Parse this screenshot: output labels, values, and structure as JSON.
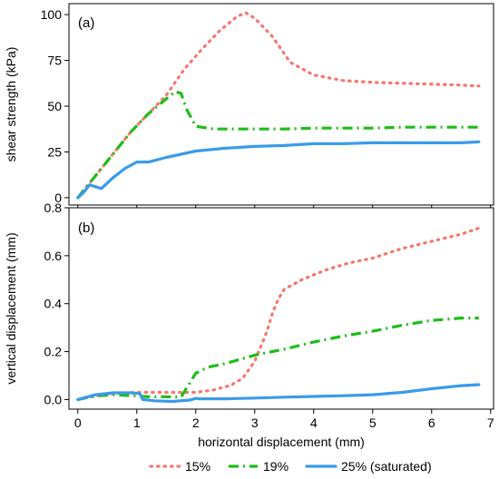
{
  "chart_data": [
    {
      "type": "line",
      "panel_label": "(a)",
      "xlabel": "",
      "ylabel": "shear strength (kPa)",
      "xlim": [
        -0.15,
        7.05
      ],
      "ylim": [
        -4,
        106
      ],
      "yticks": [
        0,
        25,
        50,
        75,
        100
      ],
      "ytick_labels": [
        "0",
        "25",
        "50",
        "75",
        "100"
      ],
      "series": [
        {
          "name": "15%",
          "color": "#f8766d",
          "style": "dotted",
          "x": [
            0.0,
            0.3,
            0.6,
            0.9,
            1.2,
            1.5,
            1.8,
            2.1,
            2.4,
            2.7,
            2.85,
            3.0,
            3.3,
            3.6,
            4.0,
            4.5,
            5.0,
            5.5,
            6.0,
            6.5,
            6.8
          ],
          "y": [
            0,
            12,
            24,
            36,
            46,
            56,
            70,
            81,
            91,
            99,
            101,
            98,
            88,
            74,
            67,
            64,
            63,
            62.5,
            62,
            61.5,
            61
          ]
        },
        {
          "name": "19%",
          "color": "#1dbd18",
          "style": "dashdot",
          "x": [
            0.0,
            0.3,
            0.6,
            0.9,
            1.2,
            1.5,
            1.65,
            1.75,
            1.85,
            2.0,
            2.3,
            2.6,
            3.0,
            3.5,
            4.0,
            4.5,
            5.0,
            5.5,
            6.0,
            6.5,
            6.8
          ],
          "y": [
            0,
            12,
            24,
            36,
            46,
            54,
            58,
            57,
            48,
            39,
            37.5,
            37.5,
            37.5,
            37.5,
            38,
            38,
            38,
            38.5,
            38.5,
            38.5,
            38.5
          ]
        },
        {
          "name": "25% (saturated)",
          "color": "#3a9be8",
          "style": "solid",
          "x": [
            0.0,
            0.1,
            0.2,
            0.3,
            0.4,
            0.6,
            0.8,
            1.0,
            1.1,
            1.2,
            1.5,
            2.0,
            2.5,
            3.0,
            3.5,
            4.0,
            4.5,
            5.0,
            5.5,
            6.0,
            6.5,
            6.8
          ],
          "y": [
            0,
            3,
            7,
            6,
            5,
            11,
            16,
            19.5,
            19.5,
            19.5,
            22,
            25.5,
            27,
            28,
            28.5,
            29.5,
            29.5,
            30,
            30,
            30,
            30,
            30.5
          ]
        }
      ]
    },
    {
      "type": "line",
      "panel_label": "(b)",
      "xlabel": "horizontal displacement (mm)",
      "ylabel": "vertical displacement (mm)",
      "xlim": [
        -0.15,
        7.05
      ],
      "ylim": [
        -0.04,
        0.8
      ],
      "xticks": [
        0,
        1,
        2,
        3,
        4,
        5,
        6,
        7
      ],
      "xtick_labels": [
        "0",
        "1",
        "2",
        "3",
        "4",
        "5",
        "6",
        "7"
      ],
      "yticks": [
        0.0,
        0.2,
        0.4,
        0.6,
        0.8
      ],
      "ytick_labels": [
        "0.0",
        "0.2",
        "0.4",
        "0.6",
        "0.8"
      ],
      "series": [
        {
          "name": "15%",
          "color": "#f8766d",
          "style": "dotted",
          "x": [
            0.0,
            0.3,
            0.6,
            1.0,
            1.1,
            1.5,
            2.0,
            2.3,
            2.6,
            2.8,
            3.0,
            3.1,
            3.2,
            3.3,
            3.4,
            3.5,
            3.8,
            4.2,
            4.6,
            5.0,
            5.5,
            6.0,
            6.5,
            6.8
          ],
          "y": [
            0,
            0.015,
            0.025,
            0.03,
            0.03,
            0.03,
            0.03,
            0.04,
            0.06,
            0.09,
            0.16,
            0.22,
            0.28,
            0.36,
            0.42,
            0.46,
            0.5,
            0.54,
            0.57,
            0.59,
            0.63,
            0.66,
            0.69,
            0.715
          ]
        },
        {
          "name": "19%",
          "color": "#1dbd18",
          "style": "dashdot",
          "x": [
            0.0,
            0.3,
            0.6,
            1.0,
            1.2,
            1.5,
            1.75,
            1.85,
            2.0,
            2.2,
            2.5,
            3.0,
            3.5,
            4.0,
            4.5,
            5.0,
            5.5,
            6.0,
            6.5,
            6.8
          ],
          "y": [
            0,
            0.015,
            0.02,
            0.015,
            0.012,
            0.012,
            0.01,
            0.05,
            0.11,
            0.135,
            0.15,
            0.185,
            0.21,
            0.24,
            0.265,
            0.285,
            0.31,
            0.33,
            0.34,
            0.34
          ]
        },
        {
          "name": "25% (saturated)",
          "color": "#3a9be8",
          "style": "solid",
          "x": [
            0.0,
            0.3,
            0.6,
            0.9,
            1.05,
            1.1,
            1.3,
            1.6,
            1.9,
            2.0,
            2.05,
            2.5,
            3.0,
            3.5,
            4.0,
            4.5,
            5.0,
            5.5,
            6.0,
            6.5,
            6.8
          ],
          "y": [
            0,
            0.02,
            0.028,
            0.028,
            0.025,
            0.0,
            -0.005,
            -0.008,
            -0.002,
            0.005,
            0.003,
            0.003,
            0.006,
            0.01,
            0.013,
            0.016,
            0.02,
            0.03,
            0.045,
            0.058,
            0.062
          ]
        }
      ]
    }
  ],
  "legend": {
    "placement": "bottom",
    "items": [
      {
        "label": "15%",
        "color": "#f8766d",
        "style": "dotted"
      },
      {
        "label": "19%",
        "color": "#1dbd18",
        "style": "dashdot"
      },
      {
        "label": "25% (saturated)",
        "color": "#3a9be8",
        "style": "solid"
      }
    ]
  }
}
